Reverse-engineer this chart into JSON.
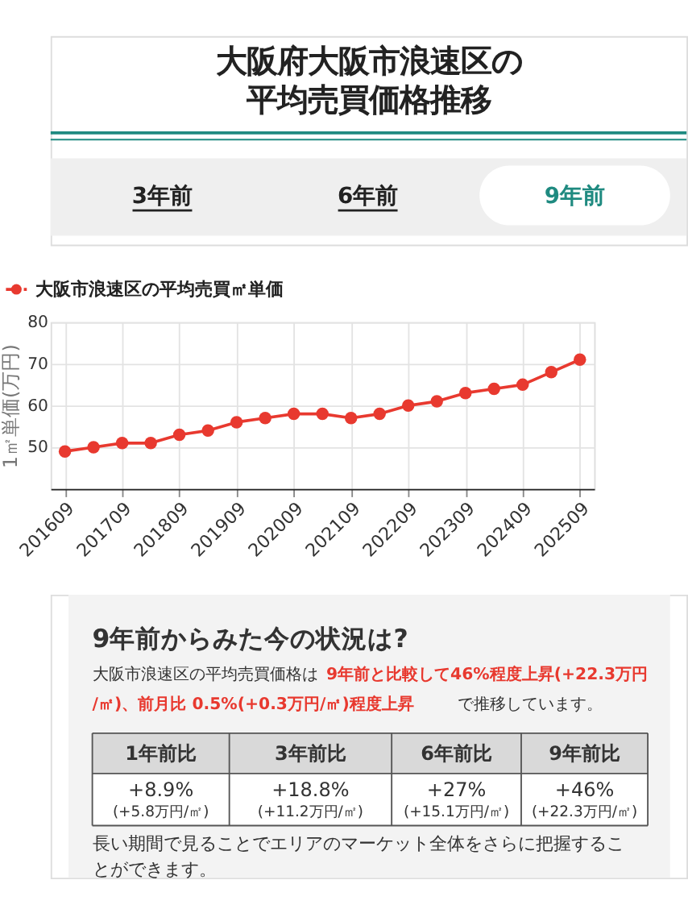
{
  "chart_data": {
    "type": "line",
    "title": "大阪府大阪市浪速区の平均売買価格推移",
    "categories": [
      "201609",
      null,
      "201709",
      null,
      "201809",
      null,
      "201909",
      null,
      "202009",
      null,
      "202109",
      null,
      "202209",
      null,
      "202309",
      null,
      "202409",
      null,
      "202509"
    ],
    "series": [
      {
        "name": "大阪市浪速区の平均売買㎡単価",
        "color": "#e8392f",
        "values": [
          49,
          50,
          51,
          51,
          53,
          54,
          56,
          57,
          58,
          58,
          57,
          58,
          60,
          61,
          63,
          64,
          65,
          68,
          71
        ]
      }
    ],
    "ylabel": "1㎡単価(万円)",
    "ylim": [
      40,
      80
    ],
    "yticks": [
      50,
      60,
      70,
      80
    ],
    "grid": true,
    "legend": "top left",
    "marker": "circle",
    "line_style": "solid",
    "annotations": [
      "3年前",
      "6年前",
      "9年前",
      "9年前からみた今の状況は?",
      "大阪市浪速区の平均売買価格は",
      "9年前と比較して46%程度上昇(+22.3万円/㎡)、前月比 0.5%(+0.3万円/㎡)程度上昇",
      " で推移しています。",
      "1年前比",
      "3年前比",
      "6年前比",
      "9年前比",
      "+8.9%",
      "(+5.8万円/㎡)",
      "+18.8%",
      "(+11.2万円/㎡)",
      "+27%",
      "(+15.1万円/㎡)",
      "+46%",
      "(+22.3万円/㎡)",
      "長い期間で見ることでエリアのマーケット全体をさらに把握することができます。"
    ]
  }
}
